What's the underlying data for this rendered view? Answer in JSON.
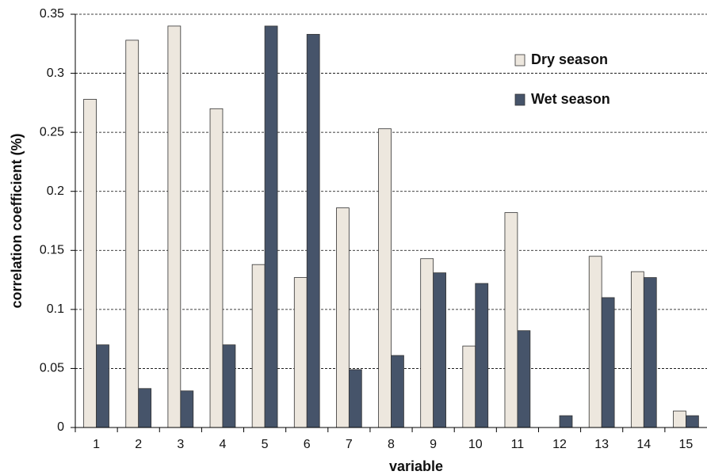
{
  "chart_data": {
    "type": "bar",
    "y_label": "correlation coefficient  (%)",
    "x_label": "variable",
    "categories": [
      "1",
      "2",
      "3",
      "4",
      "5",
      "6",
      "7",
      "8",
      "9",
      "10",
      "11",
      "12",
      "13",
      "14",
      "15"
    ],
    "series": [
      {
        "name": "Dry season",
        "color": "#ede7de",
        "values": [
          0.278,
          0.328,
          0.34,
          0.27,
          0.138,
          0.127,
          0.186,
          0.253,
          0.143,
          0.069,
          0.182,
          0,
          0.145,
          0.132,
          0.014
        ]
      },
      {
        "name": "Wet season",
        "color": "#46546a",
        "values": [
          0.07,
          0.033,
          0.031,
          0.07,
          0.34,
          0.333,
          0.049,
          0.061,
          0.131,
          0.122,
          0.082,
          0.01,
          0.11,
          0.127,
          0.01
        ]
      }
    ],
    "ylim": [
      0,
      0.35
    ],
    "yticks": [
      0,
      0.05,
      0.1,
      0.15,
      0.2,
      0.25,
      0.3,
      0.35
    ],
    "grid": true,
    "legend": "upper-right"
  }
}
